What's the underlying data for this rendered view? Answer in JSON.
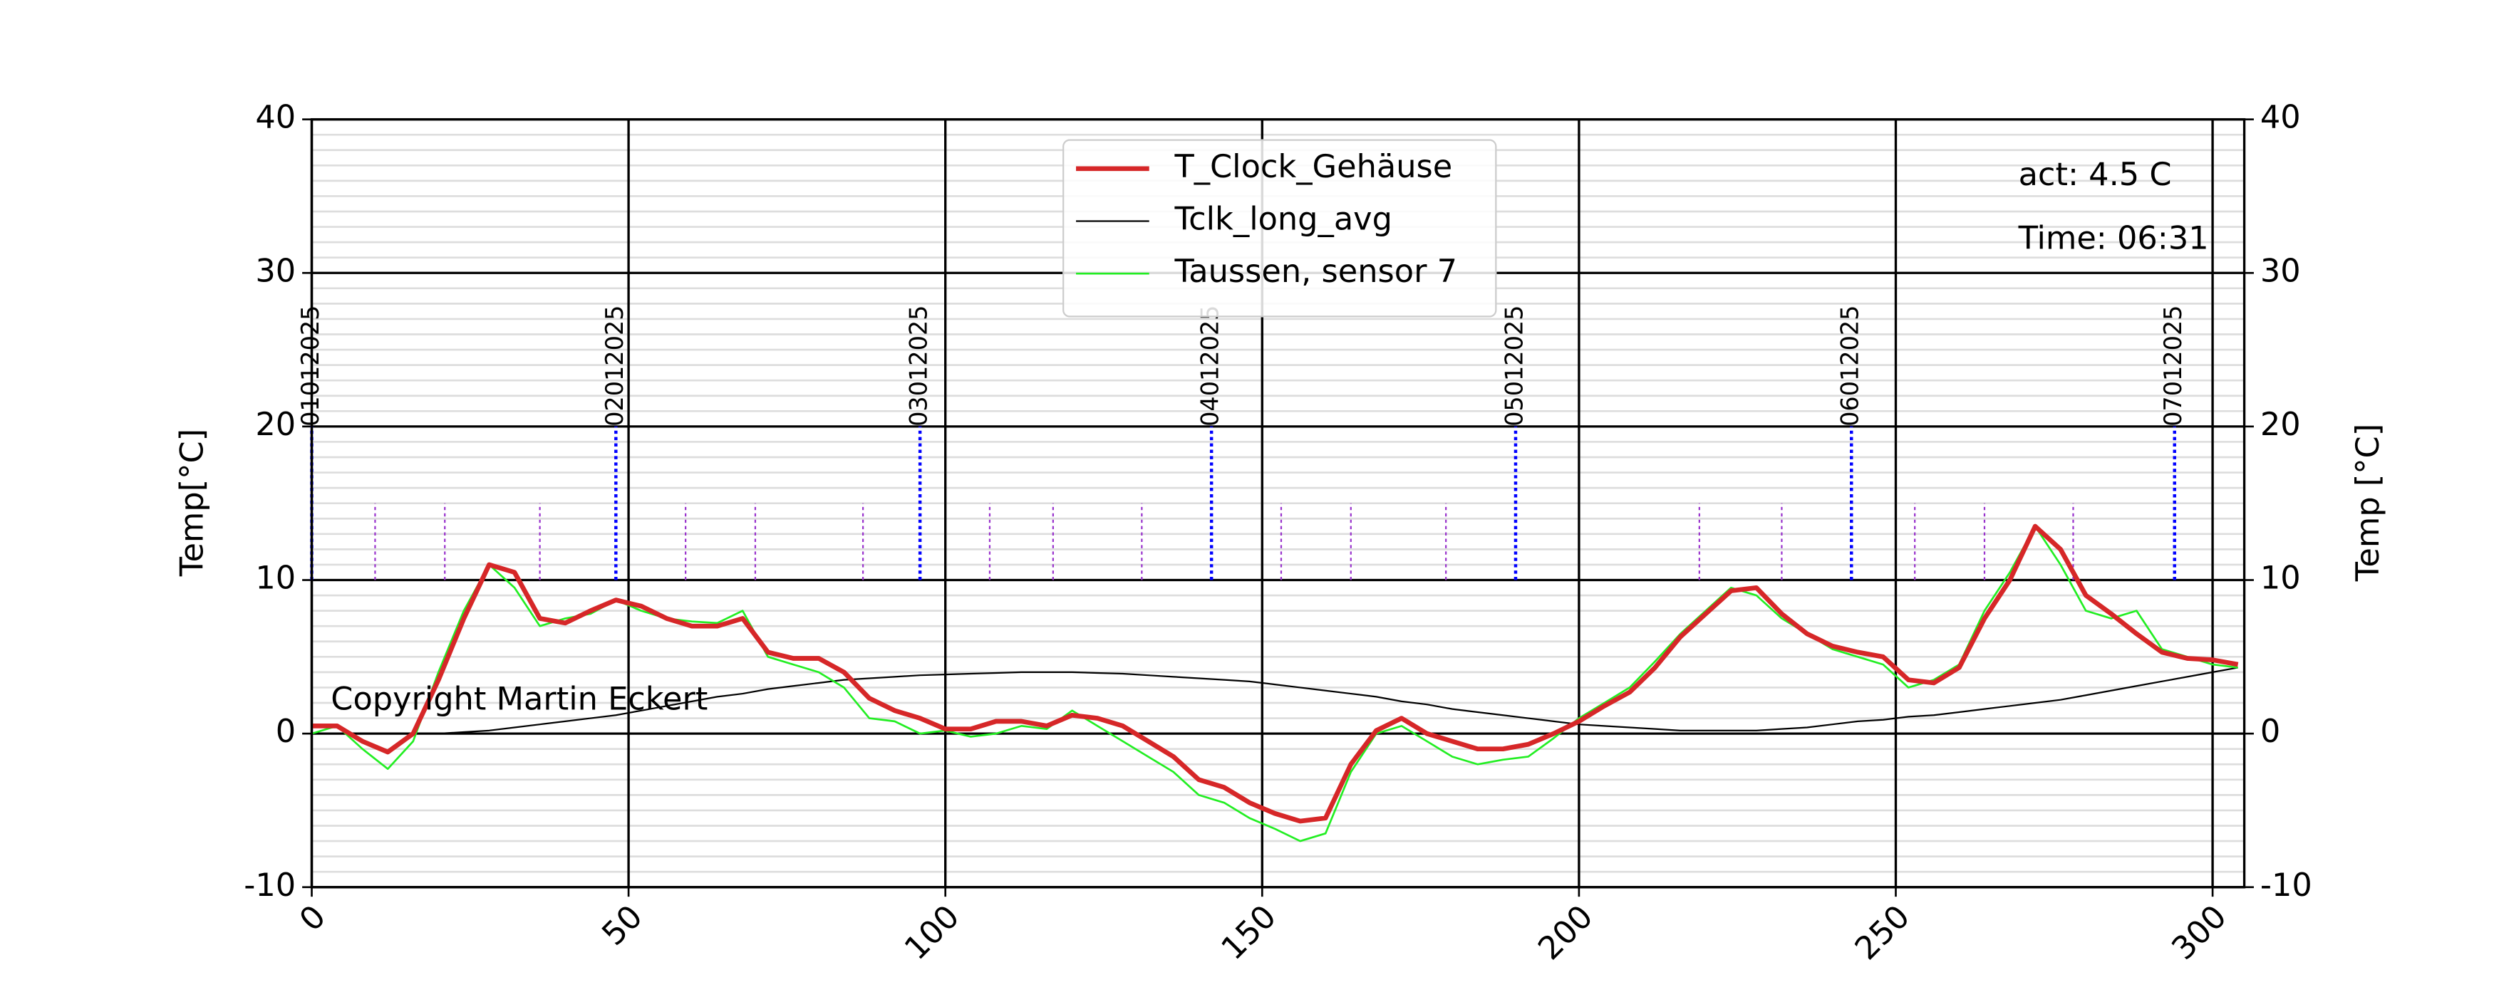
{
  "chart_data": {
    "type": "line",
    "y_label": "Temp[°C]",
    "y2_label": "Temp [°C]",
    "x": [
      0,
      4,
      8,
      12,
      16,
      20,
      24,
      28,
      32,
      36,
      40,
      44,
      48,
      52,
      56,
      60,
      64,
      68,
      72,
      76,
      80,
      84,
      88,
      92,
      96,
      100,
      104,
      108,
      112,
      116,
      120,
      124,
      128,
      132,
      136,
      140,
      144,
      148,
      152,
      156,
      160,
      164,
      168,
      172,
      176,
      180,
      184,
      188,
      192,
      196,
      200,
      204,
      208,
      212,
      216,
      220,
      224,
      228,
      232,
      236,
      240,
      244,
      248,
      252,
      256,
      260,
      264,
      268,
      272,
      276,
      280,
      284,
      288,
      292,
      296,
      300,
      304
    ],
    "series": [
      {
        "name": "T_Clock_Gehäuse",
        "color": "#d62728",
        "width": 3,
        "values": [
          0.5,
          0.5,
          -0.5,
          -1.2,
          0,
          3.5,
          7.5,
          11,
          10.5,
          7.5,
          7.2,
          8,
          8.7,
          8.3,
          7.5,
          7,
          7,
          7.5,
          5.3,
          4.9,
          4.9,
          4,
          2.3,
          1.5,
          1,
          0.3,
          0.3,
          0.8,
          0.8,
          0.5,
          1.2,
          1,
          0.5,
          -0.5,
          -1.5,
          -3,
          -3.5,
          -4.5,
          -5.2,
          -5.7,
          -5.5,
          -2,
          0.2,
          1,
          0,
          -0.5,
          -1,
          -1,
          -0.7,
          0,
          0.8,
          1.8,
          2.7,
          4.3,
          6.3,
          7.8,
          9.3,
          9.5,
          7.8,
          6.5,
          5.7,
          5.3,
          5,
          3.5,
          3.3,
          4.3,
          7.5,
          10,
          13.5,
          12,
          9,
          7.8,
          6.5,
          5.3,
          4.9,
          4.8,
          4.5
        ]
      },
      {
        "name": "Tclk_long_avg",
        "color": "#000000",
        "width": 1,
        "values": [
          null,
          null,
          null,
          null,
          null,
          0,
          0.1,
          0.2,
          0.4,
          0.6,
          0.8,
          1,
          1.2,
          1.5,
          1.8,
          2.1,
          2.4,
          2.6,
          2.9,
          3.1,
          3.3,
          3.5,
          3.6,
          3.7,
          3.8,
          3.85,
          3.9,
          3.95,
          4,
          4,
          4,
          3.95,
          3.9,
          3.8,
          3.7,
          3.6,
          3.5,
          3.4,
          3.2,
          3,
          2.8,
          2.6,
          2.4,
          2.1,
          1.9,
          1.6,
          1.4,
          1.2,
          1,
          0.8,
          0.6,
          0.5,
          0.4,
          0.3,
          0.2,
          0.2,
          0.2,
          0.2,
          0.3,
          0.4,
          0.6,
          0.8,
          0.9,
          1.1,
          1.2,
          1.4,
          1.6,
          1.8,
          2,
          2.2,
          2.5,
          2.8,
          3.1,
          3.4,
          3.7,
          4,
          4.3
        ]
      },
      {
        "name": "Taussen, sensor 7",
        "color": "#22ee22",
        "width": 1.2,
        "values": [
          0,
          0.5,
          -1,
          -2.3,
          -0.5,
          4,
          8,
          11,
          9.5,
          7,
          7.5,
          7.8,
          8.7,
          8,
          7.5,
          7.3,
          7.2,
          8,
          5,
          4.5,
          4,
          3,
          1,
          0.8,
          0,
          0.2,
          -0.2,
          0,
          0.5,
          0.3,
          1.5,
          0.5,
          -0.5,
          -1.5,
          -2.5,
          -4,
          -4.5,
          -5.5,
          -6.2,
          -7,
          -6.5,
          -2.5,
          0,
          0.5,
          -0.5,
          -1.5,
          -2,
          -1.7,
          -1.5,
          -0.3,
          1,
          2,
          3,
          4.7,
          6.5,
          8,
          9.5,
          9,
          7.5,
          6.5,
          5.5,
          5,
          4.5,
          3,
          3.5,
          4.5,
          8,
          10.5,
          13.5,
          11,
          8,
          7.5,
          8,
          5.5,
          5,
          4.5,
          4.3
        ]
      }
    ],
    "xlim": [
      0,
      305
    ],
    "ylim": [
      -10,
      40
    ],
    "y2lim": [
      -10,
      40
    ],
    "xticks": [
      0,
      50,
      100,
      150,
      200,
      250,
      300
    ],
    "yticks": [
      -10,
      0,
      10,
      20,
      30,
      40
    ],
    "y2ticks": [
      -10,
      0,
      10,
      20,
      30,
      40
    ],
    "grid": true,
    "minor_grid": true,
    "legend": "upper center",
    "day_markers": {
      "color": "#0000ff",
      "range": [
        10,
        20
      ],
      "items": [
        {
          "x": 0,
          "label": "01012025"
        },
        {
          "x": 48,
          "label": "02012025"
        },
        {
          "x": 96,
          "label": "03012025"
        },
        {
          "x": 142,
          "label": "04012025"
        },
        {
          "x": 190,
          "label": "05012025"
        },
        {
          "x": 243,
          "label": "06012025"
        },
        {
          "x": 294,
          "label": "07012025"
        }
      ]
    },
    "hour_markers": {
      "color": "#9933cc",
      "range": [
        10,
        15
      ],
      "x": [
        10,
        21,
        36,
        59,
        70,
        87,
        107,
        117,
        131,
        153,
        164,
        179,
        219,
        232,
        253,
        264,
        278
      ]
    },
    "annotations": [
      "act: 4.5 C",
      "Time: 06:31",
      "Copyright Martin Eckert"
    ]
  }
}
